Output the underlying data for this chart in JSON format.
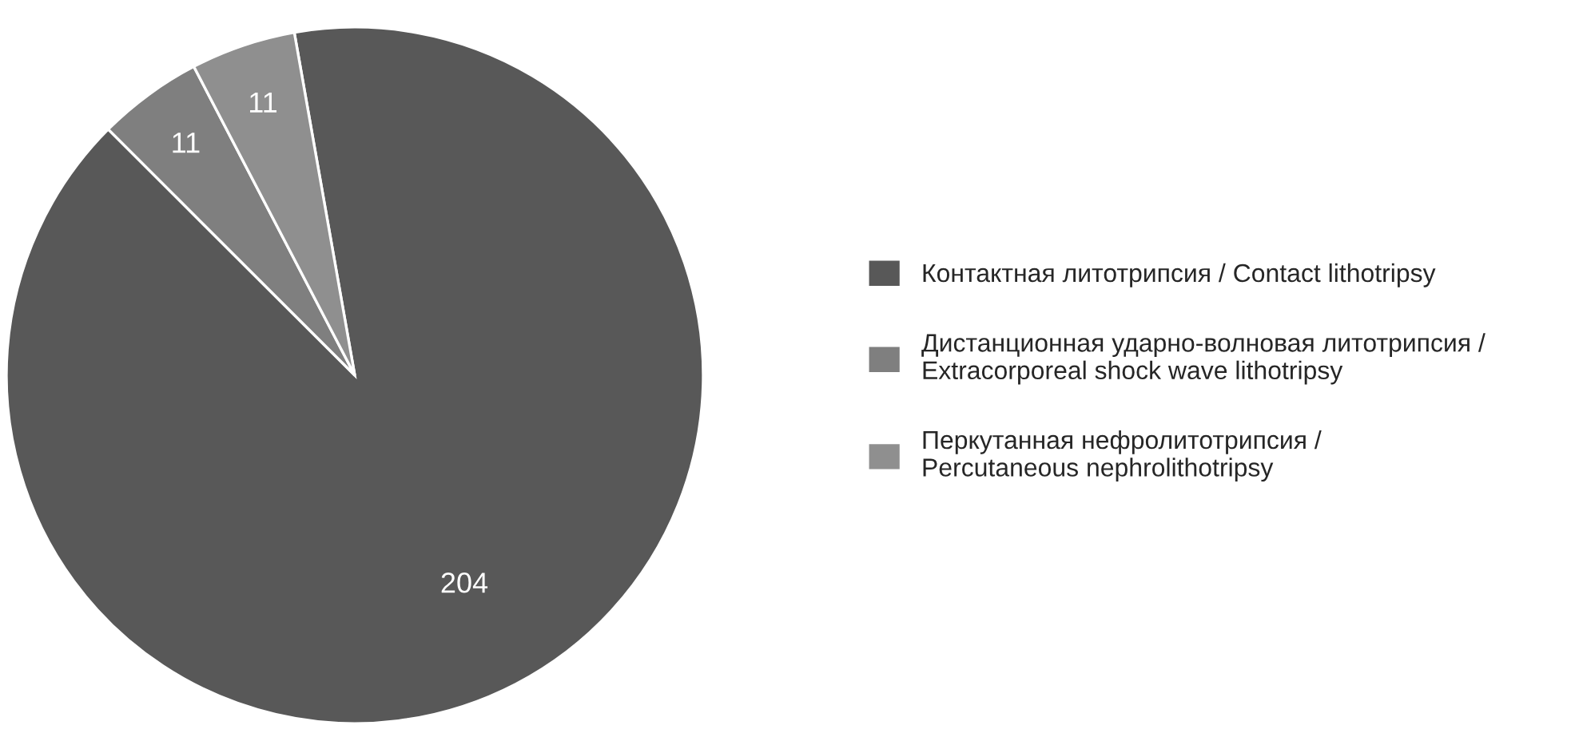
{
  "chart_data": {
    "type": "pie",
    "categories": [
      "Контактная литотрипсия / Contact lithotripsy",
      "Дистанционная ударно-волновая литотрипсия /\nExtracorporeal shock wave lithotripsy",
      "Перкутанная нефролитотрипсия /\nPercutaneous nephrolithotripsy"
    ],
    "values": [
      204,
      11,
      11
    ],
    "colors": [
      "#585858",
      "#7f7f7f",
      "#8f8f8f"
    ],
    "data_labels": true,
    "legend": "right"
  }
}
